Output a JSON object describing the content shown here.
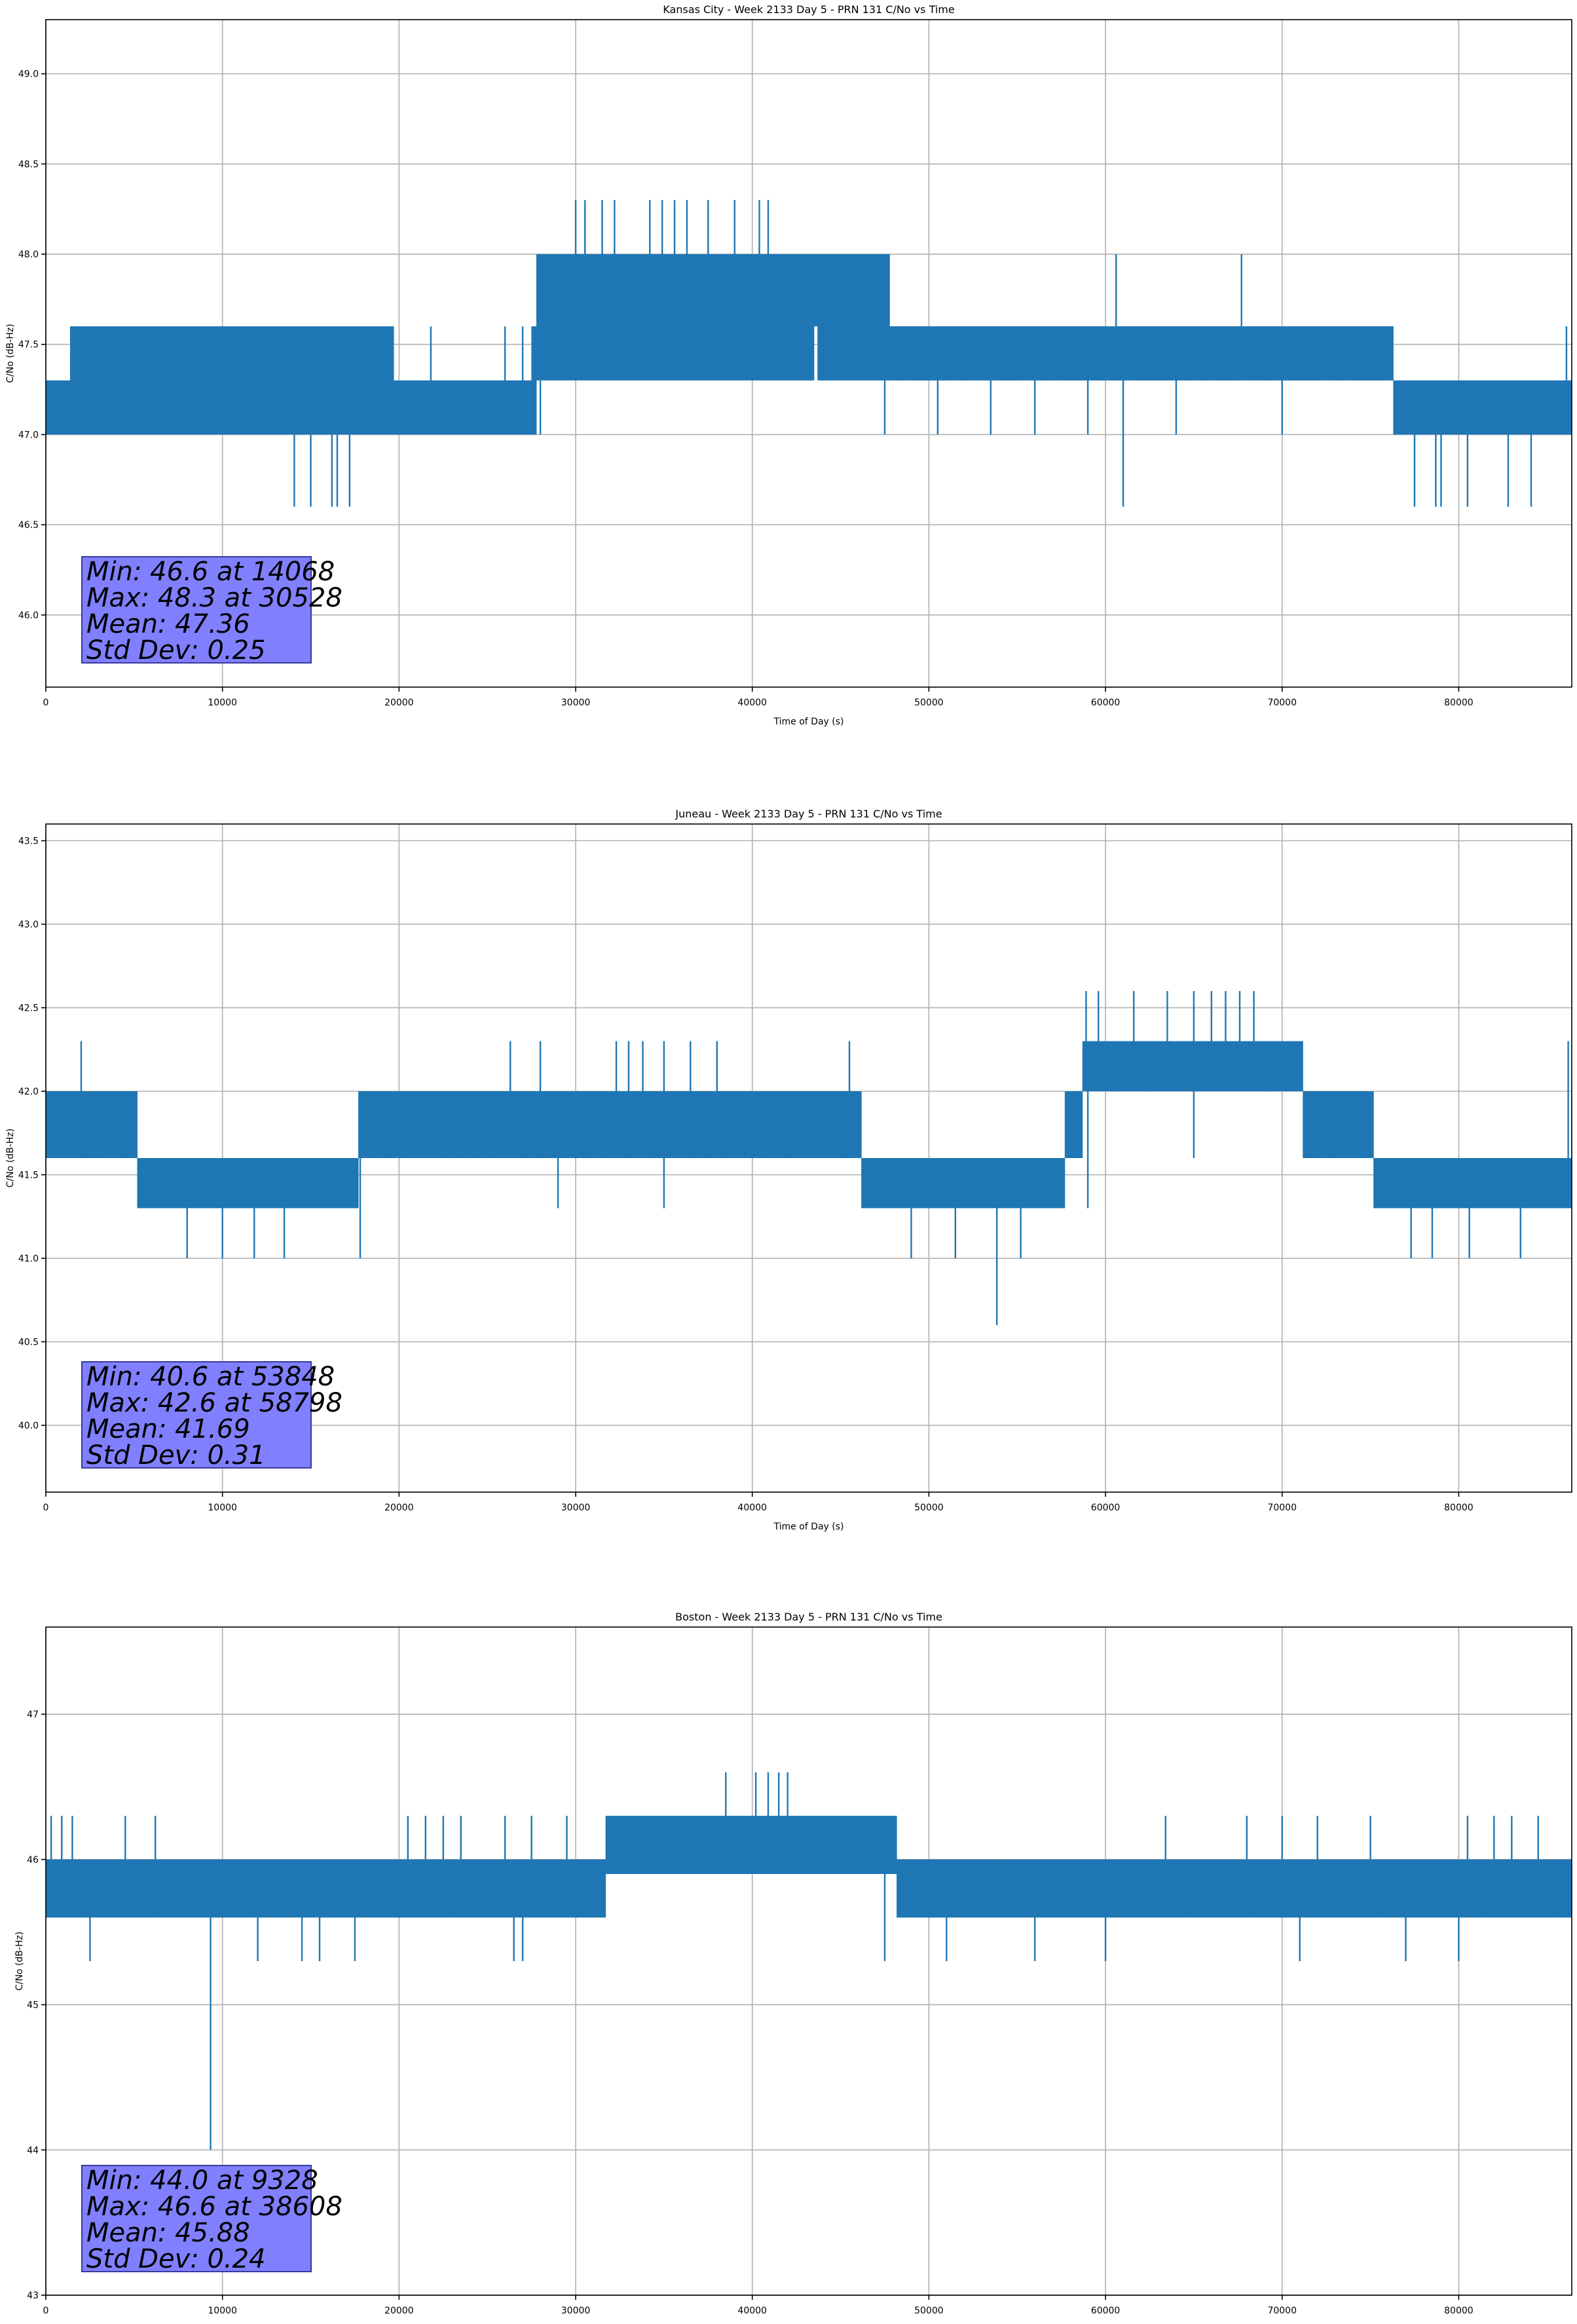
{
  "colors": {
    "series": "#1f77b4",
    "grid": "#b0b0b0",
    "stats_box": "#8080ff"
  },
  "chart_data": [
    {
      "type": "line",
      "title": "Kansas City - Week 2133 Day 5 - PRN 131 C/No vs Time",
      "xlabel": "Time of Day (s)",
      "ylabel": "C/No (dB-Hz)",
      "xlim": [
        0,
        86400
      ],
      "ylim": [
        45.6,
        49.3
      ],
      "xticks": [
        0,
        10000,
        20000,
        30000,
        40000,
        50000,
        60000,
        70000,
        80000
      ],
      "xtick_labels": [
        "0",
        "10000",
        "20000",
        "30000",
        "40000",
        "50000",
        "60000",
        "70000",
        "80000"
      ],
      "yticks": [
        46.0,
        46.5,
        47.0,
        47.5,
        48.0,
        48.5,
        49.0
      ],
      "ytick_labels": [
        "46.0",
        "46.5",
        "47.0",
        "47.5",
        "48.0",
        "48.5",
        "49.0"
      ],
      "grid": true,
      "series": [
        {
          "band_x": [
            0,
            1300,
            1400,
            19500,
            19700,
            27500,
            27800,
            43500,
            43700,
            47800,
            48000,
            76000,
            76300,
            86400
          ],
          "band_low": [
            47.0,
            47.0,
            47.0,
            47.0,
            47.0,
            47.0,
            47.3,
            47.6,
            47.3,
            47.3,
            47.3,
            47.3,
            47.0,
            47.0
          ],
          "band_high": [
            47.3,
            47.3,
            47.6,
            47.6,
            47.3,
            47.6,
            48.0,
            48.0,
            48.0,
            47.6,
            47.6,
            47.6,
            47.3,
            47.3
          ],
          "spike_up": [
            [
              1400,
              47.6
            ],
            [
              2800,
              47.6
            ],
            [
              3800,
              47.6
            ],
            [
              11400,
              47.6
            ],
            [
              12000,
              47.6
            ],
            [
              13600,
              47.6
            ],
            [
              14800,
              47.6
            ],
            [
              17800,
              47.6
            ],
            [
              19400,
              47.6
            ],
            [
              21800,
              47.6
            ],
            [
              26000,
              47.6
            ],
            [
              27000,
              47.6
            ],
            [
              28000,
              48.0
            ],
            [
              28500,
              48.0
            ],
            [
              30000,
              48.3
            ],
            [
              30528,
              48.3
            ],
            [
              31500,
              48.3
            ],
            [
              32200,
              48.3
            ],
            [
              34200,
              48.3
            ],
            [
              34900,
              48.3
            ],
            [
              35600,
              48.3
            ],
            [
              36300,
              48.3
            ],
            [
              37500,
              48.3
            ],
            [
              39000,
              48.3
            ],
            [
              40400,
              48.3
            ],
            [
              40900,
              48.3
            ],
            [
              42000,
              48.0
            ],
            [
              45600,
              47.6
            ],
            [
              49000,
              47.6
            ],
            [
              51000,
              47.6
            ],
            [
              55000,
              47.6
            ],
            [
              58000,
              47.6
            ],
            [
              60600,
              48.0
            ],
            [
              67700,
              48.0
            ],
            [
              72000,
              47.6
            ],
            [
              74000,
              47.6
            ],
            [
              76000,
              47.6
            ],
            [
              86100,
              47.6
            ]
          ],
          "spike_down": [
            [
              14068,
              46.6
            ],
            [
              15000,
              46.6
            ],
            [
              16200,
              46.6
            ],
            [
              16500,
              46.6
            ],
            [
              17200,
              46.6
            ],
            [
              26200,
              47.0
            ],
            [
              28000,
              47.0
            ],
            [
              32500,
              47.3
            ],
            [
              36000,
              47.3
            ],
            [
              44000,
              47.3
            ],
            [
              47500,
              47.0
            ],
            [
              50500,
              47.0
            ],
            [
              53500,
              47.0
            ],
            [
              56000,
              47.0
            ],
            [
              59000,
              47.0
            ],
            [
              61000,
              46.6
            ],
            [
              64000,
              47.0
            ],
            [
              70000,
              47.0
            ],
            [
              77500,
              46.6
            ],
            [
              78700,
              46.6
            ],
            [
              79000,
              46.6
            ],
            [
              80500,
              46.6
            ],
            [
              82800,
              46.6
            ],
            [
              84100,
              46.6
            ]
          ]
        }
      ],
      "stats": [
        "Min: 46.6 at 14068",
        "Max: 48.3 at 30528",
        "Mean: 47.36",
        "Std Dev: 0.25"
      ]
    },
    {
      "type": "line",
      "title": "Juneau - Week 2133 Day 5 - PRN 131 C/No vs Time",
      "xlabel": "Time of Day (s)",
      "ylabel": "C/No (dB-Hz)",
      "xlim": [
        0,
        86400
      ],
      "ylim": [
        39.6,
        43.6
      ],
      "xticks": [
        0,
        10000,
        20000,
        30000,
        40000,
        50000,
        60000,
        70000,
        80000
      ],
      "xtick_labels": [
        "0",
        "10000",
        "20000",
        "30000",
        "40000",
        "50000",
        "60000",
        "70000",
        "80000"
      ],
      "yticks": [
        40.0,
        40.5,
        41.0,
        41.5,
        42.0,
        42.5,
        43.0,
        43.5
      ],
      "ytick_labels": [
        "40.0",
        "40.5",
        "41.0",
        "41.5",
        "42.0",
        "42.5",
        "43.0",
        "43.5"
      ],
      "grid": true,
      "series": [
        {
          "band_x": [
            0,
            5000,
            5200,
            17500,
            17700,
            46000,
            46200,
            57500,
            57700,
            58500,
            58700,
            71000,
            71200,
            75000,
            75200,
            86400
          ],
          "band_low": [
            41.6,
            41.6,
            41.3,
            41.3,
            41.6,
            41.6,
            41.3,
            41.3,
            41.6,
            41.6,
            42.0,
            42.0,
            41.6,
            41.6,
            41.3,
            41.6
          ],
          "band_high": [
            42.0,
            42.0,
            41.6,
            41.6,
            42.0,
            42.0,
            41.6,
            41.6,
            42.0,
            42.0,
            42.3,
            42.3,
            42.0,
            42.0,
            41.6,
            42.0
          ],
          "spike_up": [
            [
              2000,
              42.3
            ],
            [
              26300,
              42.3
            ],
            [
              28000,
              42.3
            ],
            [
              32300,
              42.3
            ],
            [
              33000,
              42.3
            ],
            [
              33800,
              42.3
            ],
            [
              35000,
              42.3
            ],
            [
              36500,
              42.3
            ],
            [
              38000,
              42.3
            ],
            [
              45500,
              42.3
            ],
            [
              58900,
              42.6
            ],
            [
              59600,
              42.6
            ],
            [
              61600,
              42.6
            ],
            [
              63500,
              42.6
            ],
            [
              65000,
              42.6
            ],
            [
              66000,
              42.6
            ],
            [
              66800,
              42.6
            ],
            [
              67600,
              42.6
            ],
            [
              68400,
              42.6
            ],
            [
              86200,
              42.3
            ]
          ],
          "spike_down": [
            [
              8000,
              41.0
            ],
            [
              10000,
              41.0
            ],
            [
              11800,
              41.0
            ],
            [
              13500,
              41.0
            ],
            [
              17800,
              41.0
            ],
            [
              29000,
              41.3
            ],
            [
              35000,
              41.3
            ],
            [
              49000,
              41.0
            ],
            [
              51500,
              41.0
            ],
            [
              53848,
              40.6
            ],
            [
              55200,
              41.0
            ],
            [
              59000,
              41.3
            ],
            [
              65000,
              41.6
            ],
            [
              75500,
              41.3
            ],
            [
              77300,
              41.0
            ],
            [
              78500,
              41.0
            ],
            [
              80600,
              41.0
            ],
            [
              83500,
              41.0
            ]
          ]
        }
      ],
      "stats": [
        "Min: 40.6 at 53848",
        "Max: 42.6 at 58798",
        "Mean: 41.69",
        "Std Dev: 0.31"
      ]
    },
    {
      "type": "line",
      "title": "Boston - Week 2133 Day 5 - PRN 131 C/No vs Time",
      "xlabel": "Time of Day (s)",
      "ylabel": "C/No (dB-Hz)",
      "xlim": [
        0,
        86400
      ],
      "ylim": [
        43.0,
        47.6
      ],
      "xticks": [
        0,
        10000,
        20000,
        30000,
        40000,
        50000,
        60000,
        70000,
        80000
      ],
      "xtick_labels": [
        "0",
        "10000",
        "20000",
        "30000",
        "40000",
        "50000",
        "60000",
        "70000",
        "80000"
      ],
      "yticks": [
        43,
        44,
        45,
        46,
        47
      ],
      "ytick_labels": [
        "43",
        "44",
        "45",
        "46",
        "47"
      ],
      "grid": true,
      "series": [
        {
          "band_x": [
            0,
            31500,
            31700,
            48000,
            48200,
            86400
          ],
          "band_low": [
            45.6,
            45.6,
            45.9,
            45.9,
            45.6,
            45.6
          ],
          "band_high": [
            46.0,
            46.0,
            46.3,
            46.3,
            46.0,
            46.0
          ],
          "spike_up": [
            [
              300,
              46.3
            ],
            [
              900,
              46.3
            ],
            [
              1500,
              46.3
            ],
            [
              4500,
              46.3
            ],
            [
              6200,
              46.3
            ],
            [
              20500,
              46.3
            ],
            [
              21500,
              46.3
            ],
            [
              22500,
              46.3
            ],
            [
              23500,
              46.3
            ],
            [
              26000,
              46.3
            ],
            [
              27500,
              46.3
            ],
            [
              29500,
              46.3
            ],
            [
              38500,
              46.6
            ],
            [
              40200,
              46.6
            ],
            [
              40900,
              46.6
            ],
            [
              41500,
              46.6
            ],
            [
              42000,
              46.6
            ],
            [
              63400,
              46.3
            ],
            [
              68000,
              46.3
            ],
            [
              70000,
              46.3
            ],
            [
              72000,
              46.3
            ],
            [
              75000,
              46.3
            ],
            [
              80500,
              46.3
            ],
            [
              82000,
              46.3
            ],
            [
              83000,
              46.3
            ],
            [
              84500,
              46.3
            ]
          ],
          "spike_down": [
            [
              2500,
              45.3
            ],
            [
              9328,
              44.0
            ],
            [
              12000,
              45.3
            ],
            [
              14500,
              45.3
            ],
            [
              15500,
              45.3
            ],
            [
              17500,
              45.3
            ],
            [
              26500,
              45.3
            ],
            [
              27000,
              45.3
            ],
            [
              47500,
              45.3
            ],
            [
              51000,
              45.3
            ],
            [
              56000,
              45.3
            ],
            [
              60000,
              45.3
            ],
            [
              71000,
              45.3
            ],
            [
              77000,
              45.3
            ],
            [
              80000,
              45.3
            ]
          ]
        }
      ],
      "stats": [
        "Min: 44.0 at 9328",
        "Max: 46.6 at 38608",
        "Mean: 45.88",
        "Std Dev: 0.24"
      ]
    }
  ]
}
